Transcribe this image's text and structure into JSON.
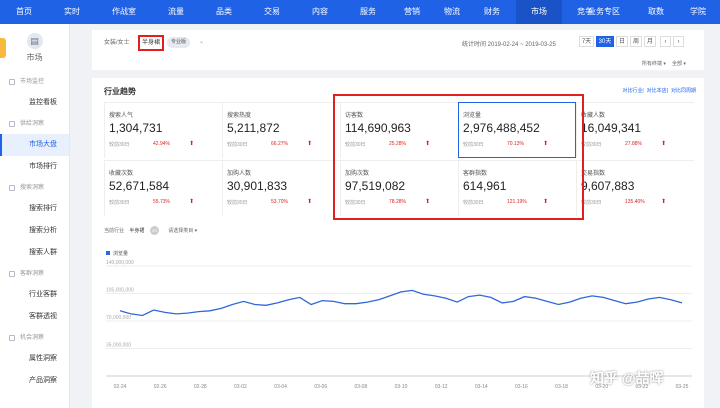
{
  "nav": {
    "items": [
      {
        "label": "首页",
        "w": 48
      },
      {
        "label": "实时",
        "w": 48
      },
      {
        "label": "作战室",
        "w": 56
      },
      {
        "label": "流量",
        "w": 48,
        "dot": true
      },
      {
        "label": "品类",
        "w": 48,
        "dot": true
      },
      {
        "label": "交易",
        "w": 48
      },
      {
        "label": "内容",
        "w": 48
      },
      {
        "label": "服务",
        "w": 48,
        "badge": "新功能"
      },
      {
        "label": "营销",
        "w": 40
      },
      {
        "label": "物流",
        "w": 40,
        "dot": true
      },
      {
        "label": "财务",
        "w": 40
      }
    ],
    "market": "市场",
    "compete": "竞争",
    "right": [
      "业务专区",
      "取数",
      "学院"
    ]
  },
  "sidebar": {
    "title": "市场",
    "sections": [
      {
        "group": "市场监控",
        "items": [
          "监控看板"
        ]
      },
      {
        "group": "供给洞察",
        "items": [
          "市场大盘",
          "市场排行"
        ],
        "active": "市场大盘"
      },
      {
        "group": "搜索洞察",
        "items": [
          "搜索排行",
          "搜索分析",
          "搜索人群"
        ]
      },
      {
        "group": "客群洞察",
        "items": [
          "行业客群",
          "客群透视"
        ]
      },
      {
        "group": "机会洞察",
        "items": [
          "属性洞察",
          "产品洞察"
        ]
      }
    ]
  },
  "filter": {
    "crumb": "女装/女士",
    "category": "半身裙",
    "pro": "专业版",
    "stat_time": "统计时间 2019-02-24 ~ 2019-03-25",
    "periods": [
      "7天",
      "30天",
      "日",
      "周",
      "月"
    ],
    "active_period": "30天",
    "terminal": "所有终端",
    "scope": "全部"
  },
  "panel": {
    "title": "行业趋势",
    "links": [
      "对比行业",
      "对比本店",
      "对比同周期"
    ],
    "compare_label": "较前30日",
    "metrics": [
      {
        "name": "搜索人气",
        "value": "1,304,731",
        "pct": "42.94%"
      },
      {
        "name": "搜索热度",
        "value": "5,211,872",
        "pct": "66.27%"
      },
      {
        "name": "访客数",
        "value": "114,690,963",
        "pct": "25.28%"
      },
      {
        "name": "浏览量",
        "value": "2,976,488,452",
        "pct": "70.13%",
        "selected": true
      },
      {
        "name": "收藏人数",
        "value": "16,049,341",
        "pct": "27.88%"
      },
      {
        "name": "收藏次数",
        "value": "52,671,584",
        "pct": "55.73%"
      },
      {
        "name": "加购人数",
        "value": "30,901,833",
        "pct": "53.70%"
      },
      {
        "name": "加购次数",
        "value": "97,519,082",
        "pct": "78.28%"
      },
      {
        "name": "客群指数",
        "value": "614,961",
        "pct": "121.19%"
      },
      {
        "name": "交易指数",
        "value": "9,607,883",
        "pct": "135.40%"
      }
    ],
    "trend": {
      "current_label": "当前行业",
      "current_value": "半身裙",
      "vs": "VS",
      "compare": "请选择类目"
    }
  },
  "chart_data": {
    "type": "line",
    "series": [
      {
        "name": "浏览量",
        "color": "#2f68d8",
        "values": [
          83000000,
          79000000,
          77000000,
          84000000,
          81000000,
          79000000,
          80000000,
          82000000,
          83000000,
          86000000,
          91000000,
          95000000,
          91000000,
          90000000,
          93000000,
          97000000,
          100000000,
          91000000,
          96000000,
          95000000,
          92000000,
          92000000,
          94000000,
          97000000,
          102000000,
          107000000,
          109000000,
          104000000,
          102000000,
          99000000,
          94000000,
          101000000,
          103000000,
          100000000,
          93000000,
          95000000,
          101000000,
          99000000,
          95000000,
          91000000,
          94000000,
          99000000,
          102000000,
          100000000,
          96000000,
          92000000,
          94000000,
          98000000,
          100000000,
          97000000,
          93000000
        ]
      }
    ],
    "ylim": [
      0,
      140000000
    ],
    "yticks": [
      "140,000,000",
      "105,000,000",
      "70,000,000",
      "35,000,000",
      "0"
    ],
    "xticks": [
      "02-24",
      "02-26",
      "02-28",
      "03-02",
      "03-04",
      "03-06",
      "03-08",
      "03-10",
      "03-12",
      "03-14",
      "03-16",
      "03-18",
      "03-20",
      "03-22",
      "03-25"
    ]
  },
  "watermark": "知乎 @喆晖"
}
